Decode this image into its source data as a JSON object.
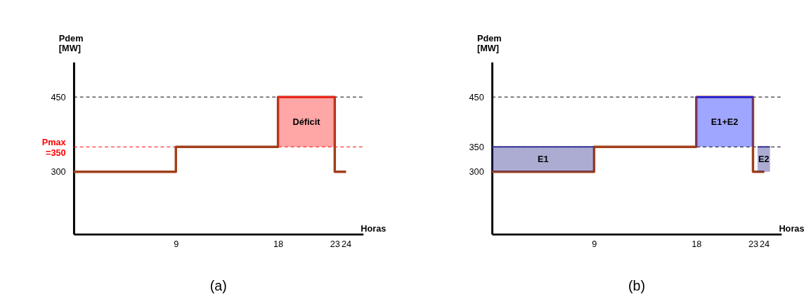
{
  "chart_data": [
    {
      "type": "step",
      "title": "(a)",
      "xlabel": "Horas",
      "ylabel": "Pdem [MW]",
      "xlim": [
        0,
        25.5
      ],
      "ylim": [
        175,
        520
      ],
      "xticks": [
        9,
        18,
        23,
        24
      ],
      "yticks": [
        300,
        {
          "value": 350,
          "label": "Pmax =350"
        },
        450
      ],
      "grid": false,
      "series": [
        {
          "type": "line",
          "name": "Déficit",
          "color": "#ff2020",
          "x": [
            18,
            23
          ],
          "values": [
            450,
            450
          ],
          "upper": [
            450,
            450
          ],
          "lower": [
            350,
            350
          ]
        },
        {
          "color": "#a0401a",
          "x": [
            0,
            9,
            18,
            23,
            24
          ],
          "values": [
            300,
            350,
            450,
            300,
            300
          ]
        }
      ],
      "ref_lines": [
        {
          "axis": "y",
          "value": 450,
          "label": null,
          "color": "#000000",
          "line_style": "dashed"
        },
        {
          "axis": "y",
          "value": 350,
          "label": null,
          "color": "#ff0000",
          "line_style": "dashed"
        }
      ]
    },
    {
      "type": "step",
      "title": "(b)",
      "xlabel": "Horas",
      "ylabel": "Pdem [MW]",
      "xlim": [
        0,
        25.5
      ],
      "ylim": [
        175,
        520
      ],
      "xticks": [
        9,
        18,
        23,
        24
      ],
      "yticks": [
        300,
        350,
        450
      ],
      "grid": false,
      "series": [
        {
          "type": "line",
          "name": "E1",
          "color": "#303090",
          "x": [
            0,
            9
          ],
          "values": [
            350,
            350
          ],
          "upper": [
            350,
            350
          ],
          "lower": [
            300,
            300
          ]
        },
        {
          "type": "line",
          "name": "E1+E2",
          "color": "#1020ff",
          "x": [
            18,
            23
          ],
          "values": [
            450,
            450
          ],
          "upper": [
            450,
            450
          ],
          "lower": [
            350,
            350
          ]
        },
        {
          "type": "line",
          "name": "E2",
          "color": "#303090",
          "x": [
            23.4,
            24.5
          ],
          "values": [
            350,
            350
          ],
          "upper": [
            350,
            350
          ],
          "lower": [
            300,
            300
          ]
        },
        {
          "color": "#a0401a",
          "x": [
            0,
            9,
            18,
            23,
            24
          ],
          "values": [
            300,
            350,
            450,
            300,
            300
          ]
        }
      ],
      "ref_lines": [
        {
          "axis": "y",
          "value": 450,
          "label": null,
          "color": "#000000",
          "line_style": "dashed"
        },
        {
          "axis": "y",
          "value": 350,
          "label": null,
          "color": "#000000",
          "line_style": "dashed"
        }
      ]
    }
  ]
}
